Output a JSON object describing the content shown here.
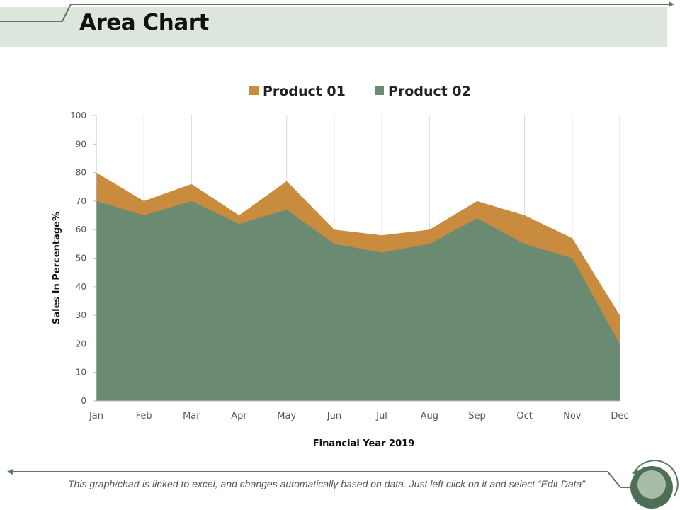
{
  "header": {
    "title": "Area Chart"
  },
  "footer": {
    "note": "This graph/chart is linked to excel, and changes automatically based on data.  Just left click on it and select “Edit Data”."
  },
  "colors": {
    "product01": "#c98c3e",
    "product02": "#6a8b71",
    "header_band": "#dde6dd",
    "accent_line": "#5a7a61"
  },
  "icons": {
    "footer": "circular-arrow-icon"
  },
  "chart_data": {
    "type": "area",
    "stacked": false,
    "title": "",
    "xlabel": "Financial Year 2019",
    "ylabel": "Sales In Percentage%",
    "categories": [
      "Jan",
      "Feb",
      "Mar",
      "Apr",
      "May",
      "Jun",
      "Jul",
      "Aug",
      "Sep",
      "Oct",
      "Nov",
      "Dec"
    ],
    "ylim": [
      0,
      100
    ],
    "yticks": [
      "0",
      "10",
      "20",
      "30",
      "40",
      "50",
      "60",
      "70",
      "80",
      "90",
      "100"
    ],
    "legend_position": "top",
    "grid": "vertical",
    "series": [
      {
        "name": "Product 01",
        "values": [
          80,
          70,
          76,
          65,
          77,
          60,
          58,
          60,
          70,
          65,
          57,
          30
        ]
      },
      {
        "name": "Product 02",
        "values": [
          70,
          65,
          70,
          62,
          67,
          55,
          52,
          55,
          64,
          55,
          50,
          20
        ]
      }
    ]
  }
}
